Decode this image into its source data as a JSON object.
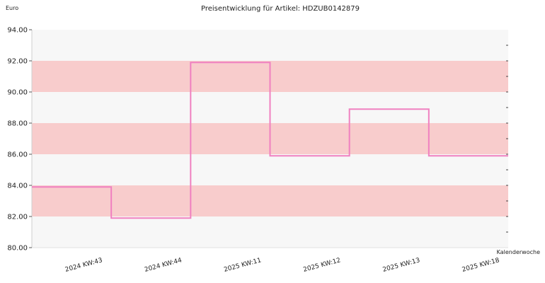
{
  "chart_data": {
    "type": "line",
    "step": "post",
    "title": "Preisentwicklung für Artikel: HDZUB0142879",
    "ylabel": "Euro",
    "xlabel": "Kalenderwoche",
    "categories": [
      "2024 KW:43",
      "2024 KW:44",
      "2025 KW:11",
      "2025 KW:12",
      "2025 KW:13",
      "2025 KW:18"
    ],
    "values": [
      83.9,
      81.9,
      91.9,
      85.9,
      88.9,
      85.9
    ],
    "ylim": [
      80,
      94
    ],
    "yticks": [
      "80.00",
      "82.00",
      "84.00",
      "86.00",
      "88.00",
      "90.00",
      "92.00",
      "94.00"
    ],
    "line_color": "#f080c0",
    "band_colors": [
      "#f7f7f7",
      "#f8cccc"
    ],
    "grid": false
  }
}
